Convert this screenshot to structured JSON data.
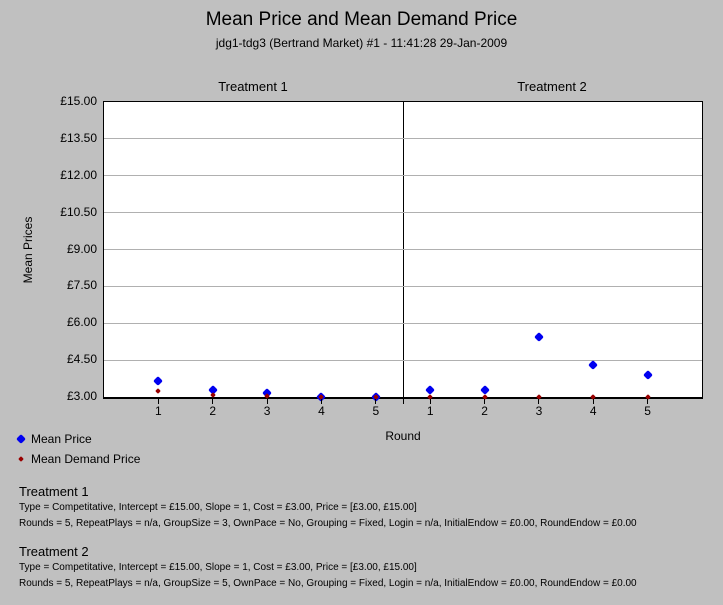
{
  "page": {
    "title": "Mean Price and Mean Demand Price",
    "subtitle": "jdg1-tdg3 (Bertrand Market) #1 - 11:41:28 29-Jan-2009"
  },
  "chart_data": {
    "type": "scatter",
    "title": "Mean Price and Mean Demand Price",
    "subtitle": "jdg1-tdg3 (Bertrand Market) #1 - 11:41:28 29-Jan-2009",
    "xlabel": "Round",
    "ylabel": "Mean Prices",
    "ylim": [
      3,
      15
    ],
    "ytick_labels": [
      "£15.00",
      "£13.50",
      "£12.00",
      "£10.50",
      "£9.00",
      "£7.50",
      "£6.00",
      "£4.50",
      "£3.00"
    ],
    "ytick_values": [
      15,
      13.5,
      12,
      10.5,
      9,
      7.5,
      6,
      4.5,
      3
    ],
    "grid": "horizontal",
    "legend_position": "bottom-left",
    "panels": [
      {
        "label": "Treatment 1",
        "x": [
          1,
          2,
          3,
          4,
          5
        ],
        "series": [
          {
            "name": "Mean Price",
            "color": "#0000f0",
            "marker": "diamond-large",
            "values": [
              3.65,
              3.3,
              3.15,
              3.0,
              3.0
            ]
          },
          {
            "name": "Mean Demand Price",
            "color": "#990000",
            "marker": "diamond-small",
            "values": [
              3.25,
              3.1,
              3.05,
              3.0,
              3.0
            ]
          }
        ]
      },
      {
        "label": "Treatment 2",
        "x": [
          1,
          2,
          3,
          4,
          5
        ],
        "series": [
          {
            "name": "Mean Price",
            "color": "#0000f0",
            "marker": "diamond-large",
            "values": [
              3.3,
              3.3,
              5.45,
              4.3,
              3.9
            ]
          },
          {
            "name": "Mean Demand Price",
            "color": "#990000",
            "marker": "diamond-small",
            "values": [
              3.0,
              3.0,
              3.0,
              3.0,
              3.0
            ]
          }
        ]
      }
    ],
    "legend": [
      {
        "label": "Mean Price",
        "color": "#0000f0",
        "marker": "diamond-large"
      },
      {
        "label": "Mean Demand Price",
        "color": "#990000",
        "marker": "diamond-small"
      }
    ]
  },
  "footer": {
    "treatments": [
      {
        "heading": "Treatment 1",
        "params_line": "Type = Competitative, Intercept = £15.00, Slope = 1, Cost = £3.00, Price = [£3.00, £15.00]",
        "session_line": "Rounds = 5, RepeatPlays = n/a, GroupSize = 3, OwnPace = No, Grouping = Fixed, Login = n/a, InitialEndow = £0.00, RoundEndow = £0.00"
      },
      {
        "heading": "Treatment 2",
        "params_line": "Type = Competitative, Intercept = £15.00, Slope = 1, Cost = £3.00, Price = [£3.00, £15.00]",
        "session_line": "Rounds = 5, RepeatPlays = n/a, GroupSize = 5, OwnPace = No, Grouping = Fixed, Login = n/a, InitialEndow = £0.00, RoundEndow = £0.00"
      }
    ]
  },
  "colors": {
    "background": "#c0c0c0",
    "plot_background": "#ffffff",
    "gridline": "#b0b0b0",
    "mean_price": "#0000f0",
    "mean_demand_price": "#990000",
    "text": "#000000"
  }
}
